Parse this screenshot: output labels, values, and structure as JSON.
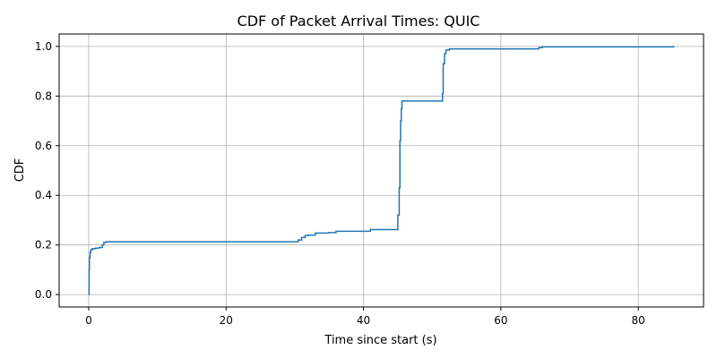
{
  "chart_data": {
    "type": "line",
    "title": "CDF of Packet Arrival Times: QUIC",
    "xlabel": "Time since start (s)",
    "ylabel": "CDF",
    "xlim": [
      -4.3,
      89.5
    ],
    "ylim": [
      -0.05,
      1.05
    ],
    "xticks": [
      0,
      20,
      40,
      60,
      80
    ],
    "yticks": [
      0.0,
      0.2,
      0.4,
      0.6,
      0.8,
      1.0
    ],
    "xtick_labels": [
      "0",
      "20",
      "40",
      "60",
      "80"
    ],
    "ytick_labels": [
      "0.0",
      "0.2",
      "0.4",
      "0.6",
      "0.8",
      "1.0"
    ],
    "grid": true,
    "line_color": "#1f77b4",
    "series": [
      {
        "step": true,
        "x": [
          0.0,
          0.05,
          0.1,
          0.2,
          0.3,
          0.5,
          1.0,
          1.5,
          2.0,
          2.2,
          2.5,
          30.0,
          30.5,
          31.0,
          31.5,
          32.0,
          33.0,
          35.0,
          36.0,
          41.0,
          45.0,
          45.2,
          45.3,
          45.4,
          45.5,
          45.6,
          51.5,
          51.6,
          51.8,
          52.0,
          52.5,
          65.0,
          65.5,
          66.0,
          85.0,
          85.2
        ],
        "y": [
          0.0,
          0.1,
          0.15,
          0.17,
          0.18,
          0.185,
          0.187,
          0.19,
          0.2,
          0.21,
          0.213,
          0.213,
          0.22,
          0.23,
          0.238,
          0.24,
          0.248,
          0.25,
          0.255,
          0.262,
          0.32,
          0.43,
          0.62,
          0.7,
          0.75,
          0.78,
          0.81,
          0.93,
          0.97,
          0.985,
          0.99,
          0.99,
          0.995,
          0.998,
          0.999,
          1.0
        ]
      }
    ]
  }
}
